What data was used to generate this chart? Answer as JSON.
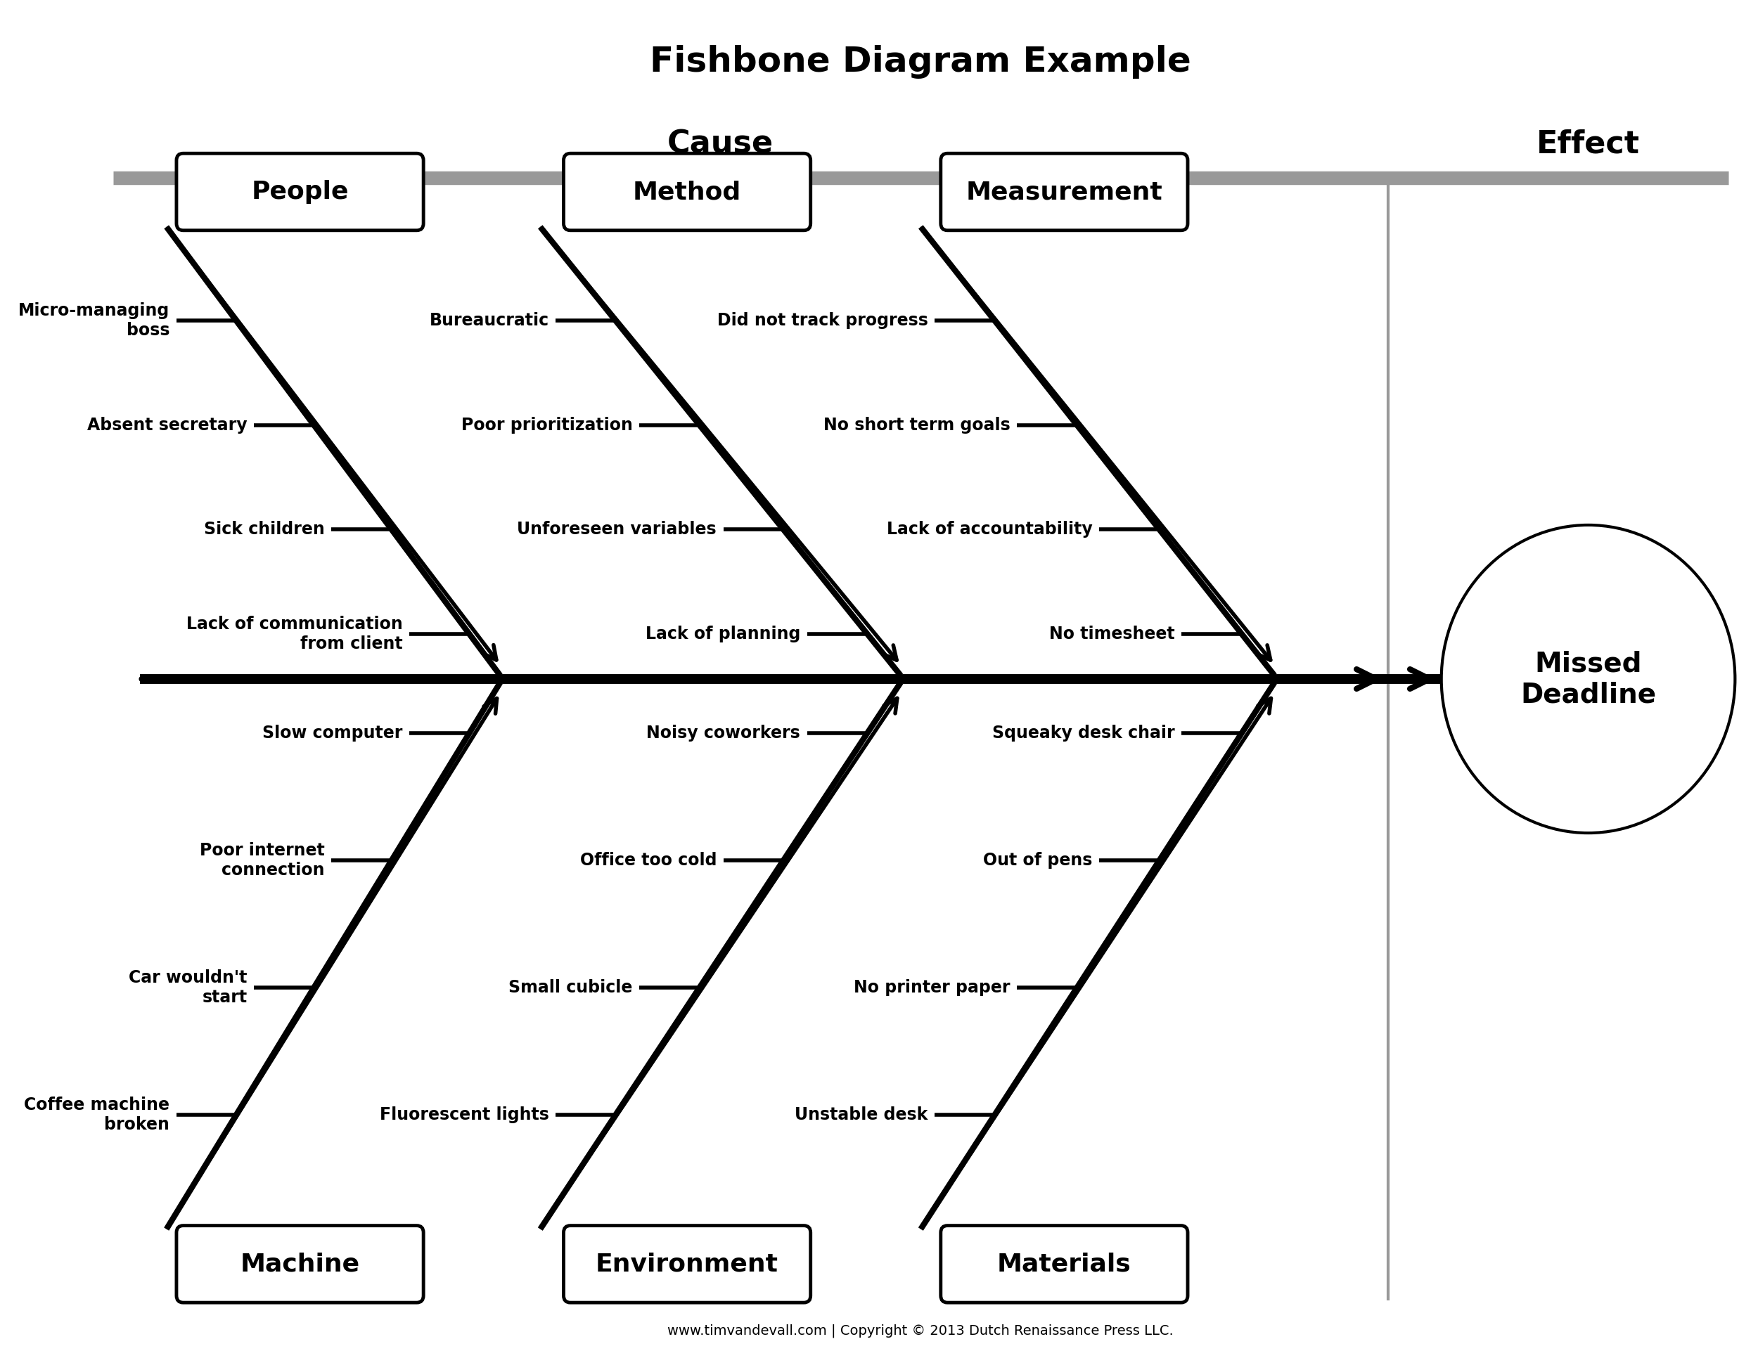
{
  "title": "Fishbone Diagram Example",
  "cause_label": "Cause",
  "effect_label": "Effect",
  "effect_text": "Missed\nDeadline",
  "bg_color": "#ffffff",
  "title_fontsize": 36,
  "cause_effect_fontsize": 32,
  "category_fontsize": 26,
  "item_fontsize": 17,
  "footer": "www.timvandevall.com | Copyright © 2013 Dutch Renaissance Press LLC.",
  "categories_top": [
    "People",
    "Method",
    "Measurement"
  ],
  "categories_bottom": [
    "Machine",
    "Environment",
    "Materials"
  ],
  "top_items": [
    [
      "Micro-managing\nboss",
      "Absent secretary",
      "Sick children",
      "Lack of communication\nfrom client"
    ],
    [
      "Bureaucratic",
      "Poor prioritization",
      "Unforeseen variables",
      "Lack of planning"
    ],
    [
      "Did not track progress",
      "No short term goals",
      "Lack of accountability",
      "No timesheet"
    ]
  ],
  "bottom_items": [
    [
      "Coffee machine\nbroken",
      "Car wouldn't\nstart",
      "Poor internet\nconnection",
      "Slow computer"
    ],
    [
      "Fluorescent lights",
      "Small cubicle",
      "Office too cold",
      "Noisy coworkers"
    ],
    [
      "Unstable desk",
      "No printer paper",
      "Out of pens",
      "Squeaky desk chair"
    ]
  ]
}
